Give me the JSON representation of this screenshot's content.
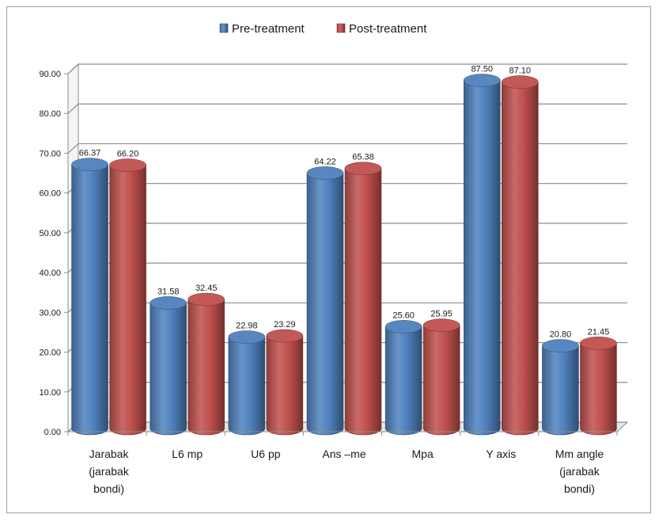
{
  "chart_data": {
    "type": "bar",
    "categories": [
      [
        "Jarabak",
        "(jarabak",
        "bondi)"
      ],
      [
        "L6 mp"
      ],
      [
        "U6 pp"
      ],
      [
        "Ans –me"
      ],
      [
        "Mpa"
      ],
      [
        "Y axis"
      ],
      [
        "Mm angle",
        "(jarabak",
        "bondi)"
      ]
    ],
    "series": [
      {
        "name": "Pre-treatment",
        "values": [
          66.37,
          31.58,
          22.98,
          64.22,
          25.6,
          87.5,
          20.8
        ],
        "labels": [
          "66.37",
          "31.58",
          "22.98",
          "64.22",
          "25.60",
          "87.50",
          "20.80"
        ]
      },
      {
        "name": "Post-treatment",
        "values": [
          66.2,
          32.45,
          23.29,
          65.38,
          25.95,
          87.1,
          21.45
        ],
        "labels": [
          "66.20",
          "32.45",
          "23.29",
          "65.38",
          "25.95",
          "87.10",
          "21.45"
        ]
      }
    ],
    "ylim": [
      0,
      90
    ],
    "yticks": [
      "0.00",
      "10.00",
      "20.00",
      "30.00",
      "40.00",
      "50.00",
      "60.00",
      "70.00",
      "80.00",
      "90.00"
    ],
    "grid": true,
    "legend": "top-center",
    "colors": {
      "pre": "#4f81bd",
      "post": "#c0504d"
    }
  }
}
